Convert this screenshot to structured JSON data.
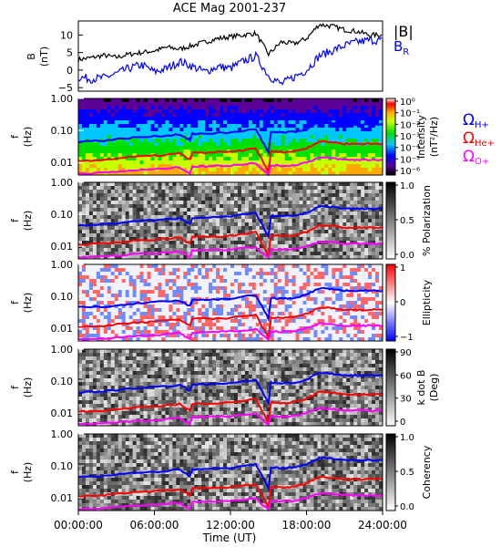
{
  "figure": {
    "title": "ACE Mag 2001-237",
    "xlabel": "Time (UT)",
    "xticks": [
      "00:00:00",
      "06:00:00",
      "12:00:00",
      "18:00:00",
      "24:00:00"
    ]
  },
  "legend": {
    "line1_label": "|B|",
    "line2_label": "B",
    "line2_sub": "R",
    "omega_symbol": "Ω",
    "cyclotron": [
      {
        "sub": "H+",
        "color": "#0000ff"
      },
      {
        "sub": "He+",
        "color": "#ff0000"
      },
      {
        "sub": "O+",
        "color": "#ff00ff"
      }
    ]
  },
  "panel_labels": {
    "b_ylabel": "B",
    "b_yunit": "(nT)",
    "f_ylabel": "f",
    "f_yunit": "(Hz)"
  },
  "colorbars": {
    "intensity": {
      "label_line1": "Intensity",
      "label_line2": "(nT²/Hz)",
      "ticks": [
        "10⁰",
        "10⁻¹",
        "10⁻²",
        "10⁻³",
        "10⁻⁴",
        "10⁻⁵",
        "10⁻⁶"
      ]
    },
    "polarization": {
      "label": "% Polarization",
      "ticks": [
        "1.0",
        "0.5",
        "0.0"
      ]
    },
    "ellipticity": {
      "label": "Ellipticity",
      "ticks": [
        "1",
        "0",
        "−1"
      ]
    },
    "kdotb": {
      "label_line1": "k dot B",
      "label_line2": "(Deg)",
      "ticks": [
        "90",
        "60",
        "30",
        "0"
      ]
    },
    "coherency": {
      "label": "Coherency",
      "ticks": [
        "1.0",
        "0.5",
        "0.0"
      ]
    }
  },
  "chart_data": [
    {
      "type": "line",
      "panel": "B field",
      "xlim": [
        0,
        24
      ],
      "ylim": [
        -6,
        14
      ],
      "yticks": [
        "10",
        "5",
        "0",
        "−5"
      ],
      "series": [
        {
          "name": "|B|",
          "color": "#000000",
          "x": [
            0,
            1,
            2,
            3,
            4,
            5,
            6,
            7,
            8,
            9,
            10,
            11,
            12,
            13,
            14,
            15,
            16,
            17,
            18,
            19,
            20,
            21,
            22,
            23,
            24
          ],
          "y": [
            3,
            3.5,
            4.2,
            3.6,
            4.5,
            5.0,
            5.5,
            6.5,
            6.0,
            7.0,
            8.0,
            9.0,
            9.5,
            10.0,
            10.5,
            4.5,
            8.0,
            7.5,
            9.0,
            13.0,
            12.5,
            11.5,
            11.0,
            10.0,
            10.0
          ]
        },
        {
          "name": "B",
          "color": "#0000ff",
          "x": [
            0,
            1,
            2,
            3,
            4,
            5,
            6,
            7,
            8,
            9,
            10,
            11,
            12,
            13,
            14,
            15,
            16,
            17,
            18,
            19,
            20,
            21,
            22,
            23,
            24
          ],
          "y": [
            -2,
            -2.5,
            -2.2,
            -1.0,
            0.5,
            1.5,
            -0.5,
            0.5,
            2.5,
            1.0,
            -0.5,
            1.0,
            0.5,
            2.5,
            4.0,
            -1.5,
            -4.0,
            -2.0,
            0.0,
            4.0,
            5.5,
            7.0,
            8.0,
            8.5,
            8.5
          ]
        }
      ]
    },
    {
      "type": "heatmap",
      "panels": [
        "Intensity",
        "% Polarization",
        "Ellipticity",
        "k dot B",
        "Coherency"
      ],
      "ylabel": "f (Hz)",
      "yscale": "log",
      "ylim": [
        0.004,
        1.0
      ],
      "yticks": [
        "1.00",
        "0.10",
        "0.01"
      ],
      "xlim": [
        0,
        24
      ],
      "overlay_lines": [
        {
          "name": "ΩH+",
          "color": "#0000ff",
          "x": [
            0,
            2,
            4,
            6,
            8,
            8.8,
            9,
            10,
            12,
            14,
            15,
            15.2,
            16,
            17,
            18,
            19,
            20,
            21,
            22,
            23,
            24
          ],
          "y": [
            0.045,
            0.048,
            0.058,
            0.065,
            0.075,
            0.05,
            0.078,
            0.08,
            0.085,
            0.11,
            0.02,
            0.09,
            0.085,
            0.09,
            0.11,
            0.18,
            0.17,
            0.15,
            0.15,
            0.15,
            0.15
          ]
        },
        {
          "name": "ΩHe+",
          "color": "#ff0000",
          "x": [
            0,
            2,
            4,
            6,
            8,
            8.8,
            9,
            10,
            12,
            14,
            15,
            15.2,
            16,
            17,
            18,
            19,
            20,
            21,
            22,
            23,
            24
          ],
          "y": [
            0.011,
            0.012,
            0.0145,
            0.016,
            0.019,
            0.012,
            0.02,
            0.02,
            0.021,
            0.027,
            0.005,
            0.022,
            0.021,
            0.022,
            0.028,
            0.045,
            0.043,
            0.038,
            0.038,
            0.038,
            0.038
          ]
        },
        {
          "name": "ΩO+",
          "color": "#ff00ff",
          "x": [
            0,
            2,
            4,
            6,
            8,
            8.8,
            9,
            10,
            12,
            14,
            15,
            15.2,
            16,
            17,
            18,
            19,
            20,
            21,
            22,
            23,
            24
          ],
          "y": [
            0.0045,
            0.0047,
            0.0055,
            0.006,
            0.007,
            0.0045,
            0.0075,
            0.0075,
            0.008,
            0.0095,
            0.0042,
            0.008,
            0.0078,
            0.008,
            0.01,
            0.014,
            0.0135,
            0.012,
            0.012,
            0.012,
            0.012
          ]
        }
      ]
    }
  ]
}
